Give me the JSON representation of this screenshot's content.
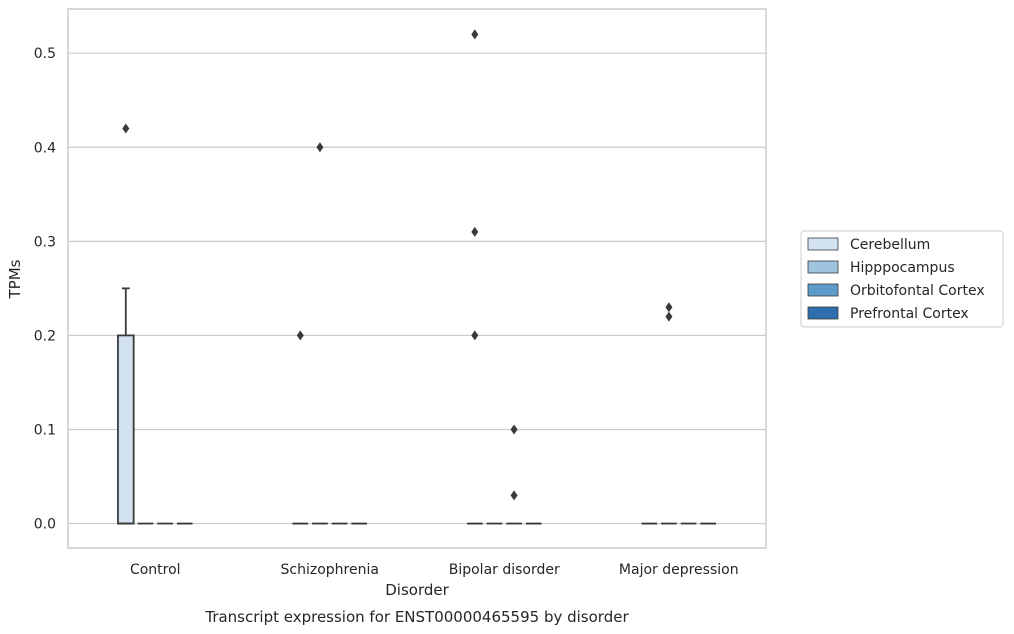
{
  "chart_data": {
    "type": "box",
    "title": "",
    "caption": "Transcript expression for ENST00000465595 by disorder",
    "xlabel": "Disorder",
    "ylabel": "TPMs",
    "categories": [
      "Control",
      "Schizophrenia",
      "Bipolar disorder",
      "Major depression"
    ],
    "ylim": [
      -0.026,
      0.547
    ],
    "yticks": [
      "0.0",
      "0.1",
      "0.2",
      "0.3",
      "0.4",
      "0.5"
    ],
    "ytick_values": [
      0.0,
      0.1,
      0.2,
      0.3,
      0.4,
      0.5
    ],
    "grid": "horizontal",
    "legend_position": "right",
    "series": [
      {
        "name": "Cerebellum",
        "color": "#d3e2f1",
        "boxes": [
          {
            "q1": 0.0,
            "median": 0.0,
            "q3": 0.2,
            "whisker_low": 0.0,
            "whisker_high": 0.25,
            "outliers": [
              0.42
            ]
          },
          {
            "q1": 0.0,
            "median": 0.0,
            "q3": 0.0,
            "whisker_low": 0.0,
            "whisker_high": 0.0,
            "outliers": [
              0.2
            ]
          },
          {
            "q1": 0.0,
            "median": 0.0,
            "q3": 0.0,
            "whisker_low": 0.0,
            "whisker_high": 0.0,
            "outliers": [
              0.2,
              0.31,
              0.52
            ]
          },
          {
            "q1": 0.0,
            "median": 0.0,
            "q3": 0.0,
            "whisker_low": 0.0,
            "whisker_high": 0.0,
            "outliers": []
          }
        ]
      },
      {
        "name": "Hipppocampus",
        "color": "#a0c4de",
        "boxes": [
          {
            "q1": 0.0,
            "median": 0.0,
            "q3": 0.0,
            "whisker_low": 0.0,
            "whisker_high": 0.0,
            "outliers": []
          },
          {
            "q1": 0.0,
            "median": 0.0,
            "q3": 0.0,
            "whisker_low": 0.0,
            "whisker_high": 0.0,
            "outliers": [
              0.4
            ]
          },
          {
            "q1": 0.0,
            "median": 0.0,
            "q3": 0.0,
            "whisker_low": 0.0,
            "whisker_high": 0.0,
            "outliers": []
          },
          {
            "q1": 0.0,
            "median": 0.0,
            "q3": 0.0,
            "whisker_low": 0.0,
            "whisker_high": 0.0,
            "outliers": [
              0.22,
              0.23
            ]
          }
        ]
      },
      {
        "name": "Orbitofontal Cortex",
        "color": "#5d9cc9",
        "boxes": [
          {
            "q1": 0.0,
            "median": 0.0,
            "q3": 0.0,
            "whisker_low": 0.0,
            "whisker_high": 0.0,
            "outliers": []
          },
          {
            "q1": 0.0,
            "median": 0.0,
            "q3": 0.0,
            "whisker_low": 0.0,
            "whisker_high": 0.0,
            "outliers": []
          },
          {
            "q1": 0.0,
            "median": 0.0,
            "q3": 0.0,
            "whisker_low": 0.0,
            "whisker_high": 0.0,
            "outliers": [
              0.03,
              0.1
            ]
          },
          {
            "q1": 0.0,
            "median": 0.0,
            "q3": 0.0,
            "whisker_low": 0.0,
            "whisker_high": 0.0,
            "outliers": []
          }
        ]
      },
      {
        "name": "Prefrontal Cortex",
        "color": "#2e6ead",
        "boxes": [
          {
            "q1": 0.0,
            "median": 0.0,
            "q3": 0.0,
            "whisker_low": 0.0,
            "whisker_high": 0.0,
            "outliers": []
          },
          {
            "q1": 0.0,
            "median": 0.0,
            "q3": 0.0,
            "whisker_low": 0.0,
            "whisker_high": 0.0,
            "outliers": []
          },
          {
            "q1": 0.0,
            "median": 0.0,
            "q3": 0.0,
            "whisker_low": 0.0,
            "whisker_high": 0.0,
            "outliers": []
          },
          {
            "q1": 0.0,
            "median": 0.0,
            "q3": 0.0,
            "whisker_low": 0.0,
            "whisker_high": 0.0,
            "outliers": []
          }
        ]
      }
    ]
  }
}
